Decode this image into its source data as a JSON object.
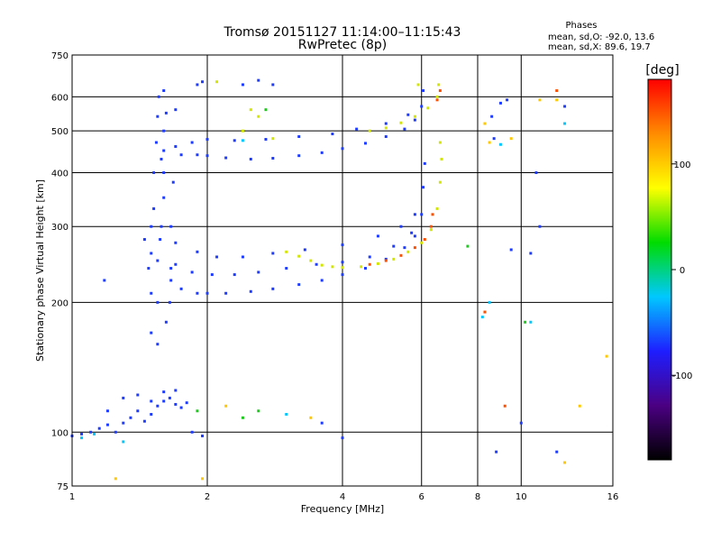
{
  "title_line1": "Tromsø 20151127 11:14:00–11:15:43",
  "title_line2": "RwPretec (8p)",
  "phase_box": {
    "heading": "Phases",
    "line1": "mean, sd,O: -92.0, 13.6",
    "line2": "mean, sd,X:  89.6, 19.7"
  },
  "colorbar": {
    "label": "[deg]",
    "range": [
      -180,
      180
    ],
    "ticks": [
      {
        "value": 100,
        "label": "100"
      },
      {
        "value": 0,
        "label": "0"
      },
      {
        "value": -100,
        "label": "-100"
      }
    ],
    "colors": [
      "#000000",
      "#4b0082",
      "#1e1eff",
      "#00c8ff",
      "#00dc00",
      "#ffff00",
      "#ff8c00",
      "#ff0000"
    ]
  },
  "chart_data": {
    "type": "scatter",
    "xlabel": "Frequency [MHz]",
    "ylabel": "Stationary phase Virtual Height [km]",
    "xscale": "log",
    "yscale": "log",
    "xlim": [
      1,
      16
    ],
    "ylim": [
      75,
      750
    ],
    "grid": true,
    "x_ticks": [
      {
        "value": 1,
        "label": "1"
      },
      {
        "value": 2,
        "label": "2"
      },
      {
        "value": 4,
        "label": "4"
      },
      {
        "value": 6,
        "label": "6"
      },
      {
        "value": 8,
        "label": "8"
      },
      {
        "value": 10,
        "label": "10"
      },
      {
        "value": 16,
        "label": "16"
      }
    ],
    "y_ticks": [
      {
        "value": 75,
        "label": "75"
      },
      {
        "value": 100,
        "label": "100"
      },
      {
        "value": 200,
        "label": "200"
      },
      {
        "value": 300,
        "label": "300"
      },
      {
        "value": 400,
        "label": "400"
      },
      {
        "value": 500,
        "label": "500"
      },
      {
        "value": 600,
        "label": "600"
      },
      {
        "value": 750,
        "label": "750"
      }
    ],
    "series": [
      {
        "color": "#1e3cff",
        "points": [
          [
            1.55,
            160
          ],
          [
            1.55,
            200
          ],
          [
            1.55,
            250
          ],
          [
            1.58,
            300
          ],
          [
            1.6,
            350
          ],
          [
            1.6,
            400
          ],
          [
            1.6,
            450
          ],
          [
            1.6,
            500
          ],
          [
            1.62,
            550
          ],
          [
            1.6,
            620
          ],
          [
            1.5,
            170
          ],
          [
            1.5,
            210
          ],
          [
            1.5,
            260
          ],
          [
            1.52,
            330
          ],
          [
            1.52,
            400
          ],
          [
            1.54,
            470
          ],
          [
            1.55,
            540
          ],
          [
            1.56,
            600
          ],
          [
            1.65,
            200
          ],
          [
            1.66,
            240
          ],
          [
            1.66,
            300
          ],
          [
            1.68,
            380
          ],
          [
            1.7,
            460
          ],
          [
            1.7,
            560
          ],
          [
            1.62,
            180
          ],
          [
            1.57,
            280
          ],
          [
            1.58,
            430
          ],
          [
            1.66,
            225
          ],
          [
            1.75,
            215
          ],
          [
            1.9,
            210
          ],
          [
            2.0,
            210
          ],
          [
            2.2,
            210
          ],
          [
            2.5,
            212
          ],
          [
            2.8,
            215
          ],
          [
            3.2,
            220
          ],
          [
            3.6,
            225
          ],
          [
            4.0,
            232
          ],
          [
            4.5,
            240
          ],
          [
            5.0,
            252
          ],
          [
            5.5,
            268
          ],
          [
            5.8,
            285
          ],
          [
            6.0,
            320
          ],
          [
            6.05,
            370
          ],
          [
            6.1,
            420
          ],
          [
            1.7,
            245
          ],
          [
            1.85,
            235
          ],
          [
            2.05,
            232
          ],
          [
            2.3,
            232
          ],
          [
            2.6,
            235
          ],
          [
            3.0,
            240
          ],
          [
            3.5,
            245
          ],
          [
            4.0,
            248
          ],
          [
            4.6,
            255
          ],
          [
            5.2,
            270
          ],
          [
            5.7,
            290
          ],
          [
            1.7,
            275
          ],
          [
            1.9,
            262
          ],
          [
            2.1,
            255
          ],
          [
            2.4,
            255
          ],
          [
            2.8,
            260
          ],
          [
            3.3,
            265
          ],
          [
            4.0,
            272
          ],
          [
            4.8,
            285
          ],
          [
            5.4,
            300
          ],
          [
            5.8,
            320
          ],
          [
            1.75,
            440
          ],
          [
            1.9,
            440
          ],
          [
            2.0,
            438
          ],
          [
            2.2,
            433
          ],
          [
            2.5,
            430
          ],
          [
            2.8,
            432
          ],
          [
            3.2,
            438
          ],
          [
            3.6,
            445
          ],
          [
            4.0,
            455
          ],
          [
            4.5,
            468
          ],
          [
            5.0,
            485
          ],
          [
            5.5,
            505
          ],
          [
            5.8,
            530
          ],
          [
            6.0,
            570
          ],
          [
            6.05,
            620
          ],
          [
            1.85,
            470
          ],
          [
            2.0,
            478
          ],
          [
            2.3,
            475
          ],
          [
            2.7,
            478
          ],
          [
            3.2,
            485
          ],
          [
            3.8,
            492
          ],
          [
            4.3,
            505
          ],
          [
            5.0,
            520
          ],
          [
            5.6,
            545
          ],
          [
            1.9,
            640
          ],
          [
            1.95,
            650
          ],
          [
            2.6,
            655
          ],
          [
            2.8,
            640
          ],
          [
            2.4,
            640
          ],
          [
            1.0,
            98
          ],
          [
            1.05,
            99
          ],
          [
            1.1,
            100
          ],
          [
            1.15,
            102
          ],
          [
            1.2,
            104
          ],
          [
            1.25,
            100
          ],
          [
            1.3,
            105
          ],
          [
            1.35,
            108
          ],
          [
            1.4,
            112
          ],
          [
            1.45,
            106
          ],
          [
            1.5,
            110
          ],
          [
            1.55,
            115
          ],
          [
            1.6,
            118
          ],
          [
            1.65,
            120
          ],
          [
            1.7,
            116
          ],
          [
            1.75,
            114
          ],
          [
            1.85,
            100
          ],
          [
            1.95,
            98
          ],
          [
            1.2,
            112
          ],
          [
            1.3,
            120
          ],
          [
            1.4,
            122
          ],
          [
            1.5,
            118
          ],
          [
            1.6,
            124
          ],
          [
            1.7,
            125
          ],
          [
            1.8,
            117
          ],
          [
            1.18,
            225
          ],
          [
            1.5,
            300
          ],
          [
            1.45,
            280
          ],
          [
            1.48,
            240
          ],
          [
            8.7,
            480
          ],
          [
            9.0,
            580
          ],
          [
            9.3,
            590
          ],
          [
            10.8,
            400
          ],
          [
            11.0,
            300
          ],
          [
            12.0,
            90
          ],
          [
            10.0,
            105
          ],
          [
            12.5,
            570
          ],
          [
            8.8,
            90
          ],
          [
            8.6,
            540
          ],
          [
            9.5,
            265
          ],
          [
            10.5,
            260
          ],
          [
            4.0,
            97
          ],
          [
            3.6,
            105
          ]
        ]
      },
      {
        "color": "#d2e600",
        "points": [
          [
            3.0,
            262
          ],
          [
            3.2,
            256
          ],
          [
            3.4,
            250
          ],
          [
            3.6,
            244
          ],
          [
            3.8,
            242
          ],
          [
            4.0,
            241
          ],
          [
            4.4,
            242
          ],
          [
            4.8,
            246
          ],
          [
            5.2,
            252
          ],
          [
            5.6,
            262
          ],
          [
            6.0,
            275
          ],
          [
            6.3,
            295
          ],
          [
            6.5,
            330
          ],
          [
            6.6,
            380
          ],
          [
            6.65,
            430
          ],
          [
            6.6,
            470
          ],
          [
            4.6,
            500
          ],
          [
            5.0,
            508
          ],
          [
            5.4,
            522
          ],
          [
            5.8,
            540
          ],
          [
            6.2,
            565
          ],
          [
            6.5,
            600
          ],
          [
            6.55,
            640
          ],
          [
            2.1,
            650
          ],
          [
            2.5,
            560
          ],
          [
            2.6,
            540
          ],
          [
            2.4,
            500
          ],
          [
            2.8,
            480
          ],
          [
            5.9,
            640
          ]
        ]
      },
      {
        "color": "#ff5000",
        "points": [
          [
            4.6,
            245
          ],
          [
            5.0,
            250
          ],
          [
            5.4,
            257
          ],
          [
            5.8,
            268
          ],
          [
            6.1,
            280
          ],
          [
            6.3,
            300
          ],
          [
            6.35,
            320
          ],
          [
            6.5,
            590
          ],
          [
            6.6,
            620
          ],
          [
            8.3,
            190
          ],
          [
            9.2,
            115
          ],
          [
            12.0,
            620
          ]
        ]
      },
      {
        "color": "#00c8ff",
        "points": [
          [
            1.05,
            97
          ],
          [
            1.12,
            99
          ],
          [
            1.3,
            95
          ],
          [
            8.2,
            185
          ],
          [
            8.5,
            200
          ],
          [
            9.0,
            465
          ],
          [
            12.5,
            520
          ],
          [
            10.5,
            180
          ],
          [
            2.4,
            475
          ],
          [
            3.0,
            110
          ]
        ]
      },
      {
        "color": "#20c820",
        "points": [
          [
            2.4,
            108
          ],
          [
            2.6,
            112
          ],
          [
            1.9,
            112
          ],
          [
            2.7,
            560
          ],
          [
            10.2,
            180
          ],
          [
            7.6,
            270
          ]
        ]
      },
      {
        "color": "#ffc800",
        "points": [
          [
            3.4,
            108
          ],
          [
            2.2,
            115
          ],
          [
            1.25,
            78
          ],
          [
            1.95,
            78
          ],
          [
            12.5,
            85
          ],
          [
            15.5,
            150
          ],
          [
            11.0,
            590
          ],
          [
            12.0,
            590
          ],
          [
            8.3,
            520
          ],
          [
            8.5,
            470
          ],
          [
            9.5,
            480
          ],
          [
            13.5,
            115
          ]
        ]
      }
    ]
  }
}
